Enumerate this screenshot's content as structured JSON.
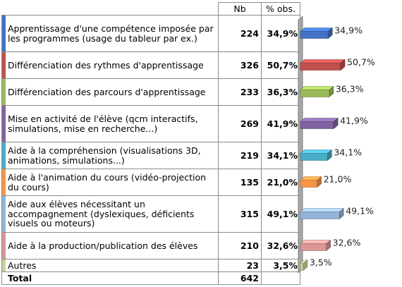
{
  "table": {
    "headers": [
      "",
      "Nb",
      "% obs."
    ],
    "total_label": "Total",
    "total_nb": "642",
    "rows": [
      {
        "label": "Apprentissage d'une compétence imposée par les programmes (usage du tableur par ex.)",
        "nb": "224",
        "pct": "34,9%",
        "color": "#4472c4"
      },
      {
        "label": "Différenciation des rythmes d'apprentissage",
        "nb": "326",
        "pct": "50,7%",
        "color": "#c0504d"
      },
      {
        "label": "Différenciation des parcours d'apprentissage",
        "nb": "233",
        "pct": "36,3%",
        "color": "#9bbb59"
      },
      {
        "label": "Mise en activité de l'élève (qcm interactifs, simulations, mise en recherche...)",
        "nb": "269",
        "pct": "41,9%",
        "color": "#8064a2"
      },
      {
        "label": "Aide à la compréhension (visualisations 3D, animations, simulations...)",
        "nb": "219",
        "pct": "34,1%",
        "color": "#4bacc6"
      },
      {
        "label": "Aide à l'animation du cours (vidéo-projection du cours)",
        "nb": "135",
        "pct": "21,0%",
        "color": "#f79646"
      },
      {
        "label": "Aide aux élèves nécessitant un accompagnement (dyslexiques, déficients visuels ou moteurs)",
        "nb": "315",
        "pct": "49,1%",
        "color": "#95b3d7"
      },
      {
        "label": "Aide à la production/publication des élèves",
        "nb": "210",
        "pct": "32,6%",
        "color": "#d99694"
      },
      {
        "label": "Autres",
        "nb": "23",
        "pct": "3,5%",
        "color": "#c3d69b"
      }
    ]
  },
  "chart_data": {
    "type": "bar",
    "orientation": "horizontal",
    "style": "3d",
    "categories": [
      "Apprentissage d'une compétence imposée par les programmes (usage du tableur par ex.)",
      "Différenciation des rythmes d'apprentissage",
      "Différenciation des parcours d'apprentissage",
      "Mise en activité de l'élève (qcm interactifs, simulations, mise en recherche...)",
      "Aide à la compréhension (visualisations 3D, animations, simulations...)",
      "Aide à l'animation du cours (vidéo-projection du cours)",
      "Aide aux élèves nécessitant un accompagnement (dyslexiques, déficients visuels ou moteurs)",
      "Aide à la production/publication des élèves",
      "Autres"
    ],
    "values": [
      34.9,
      50.7,
      36.3,
      41.9,
      34.1,
      21.0,
      49.1,
      32.6,
      3.5
    ],
    "data_labels": [
      "34,9%",
      "50,7%",
      "36,3%",
      "41,9%",
      "34,1%",
      "21,0%",
      "49,1%",
      "32,6%",
      "3,5%"
    ],
    "colors": [
      "#4472c4",
      "#c0504d",
      "#9bbb59",
      "#8064a2",
      "#4bacc6",
      "#f79646",
      "#95b3d7",
      "#d99694",
      "#c3d69b"
    ],
    "xlim": [
      0,
      55
    ],
    "grid": false,
    "legend": "none"
  }
}
